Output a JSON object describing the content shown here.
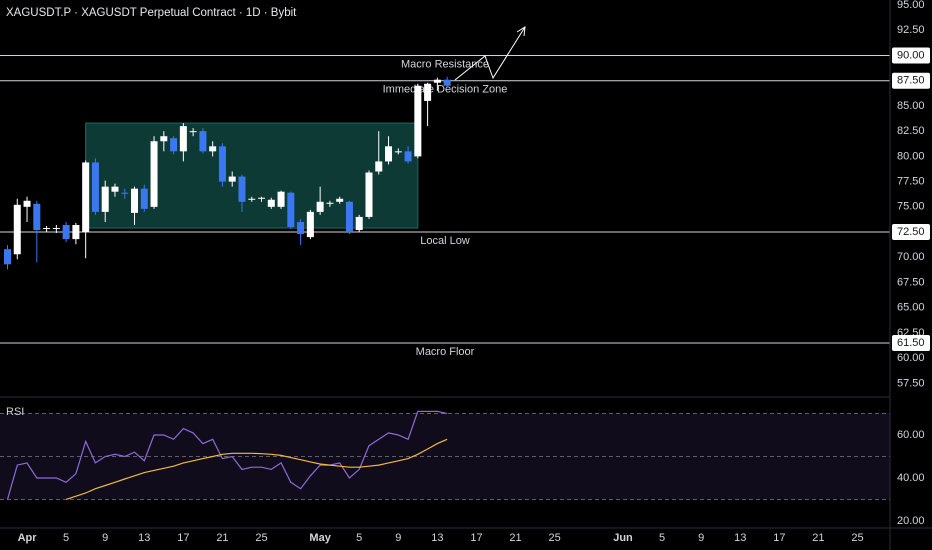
{
  "chart_data": {
    "type": "candlestick",
    "title": "XAGUSDT.P · XAGUSDT Perpetual Contract · 1D · Bybit",
    "categories": [
      null,
      null,
      "Apr",
      null,
      null,
      null,
      "5",
      null,
      null,
      null,
      "9",
      null,
      null,
      null,
      "13",
      null,
      null,
      null,
      "17",
      null,
      null,
      null,
      "21",
      null,
      null,
      null,
      "25",
      null,
      null,
      null,
      null,
      null,
      "May",
      null,
      null,
      null,
      "5",
      null,
      null,
      null,
      "9",
      null,
      null,
      null,
      "13",
      null,
      null,
      null,
      "17",
      null,
      null,
      null,
      "21",
      null,
      null,
      null,
      "25",
      null,
      null,
      null,
      null,
      null,
      null,
      "Jun",
      null,
      null,
      null,
      "5",
      null,
      null,
      null,
      "9",
      null,
      null,
      null,
      "13",
      null,
      null,
      null,
      "17",
      null,
      null,
      null,
      "21",
      null,
      null,
      null,
      "25",
      null,
      null
    ],
    "open": [
      70.8,
      70.3,
      75.0,
      75.3,
      72.8,
      72.9,
      73.2,
      71.8,
      72.5,
      79.4,
      74.5,
      76.5,
      76.4,
      74.4,
      76.8,
      75.0,
      81.5,
      81.8,
      80.5,
      82.4,
      82.5,
      80.5,
      81.0,
      77.5,
      78.0,
      75.7,
      75.8,
      75.0,
      75.0,
      76.4,
      73.5,
      72.0,
      74.5,
      75.3,
      75.5,
      75.5,
      72.7,
      74.0,
      78.5,
      79.5,
      80.5,
      80.5,
      80.0,
      85.5,
      87.3,
      87.6,
      null,
      null,
      null,
      null,
      null,
      null,
      null,
      null,
      null,
      null,
      null,
      null,
      null,
      null,
      null,
      null,
      null,
      null,
      null,
      null,
      null,
      null,
      null,
      null,
      null,
      null,
      null,
      null,
      null,
      null,
      null,
      null,
      null,
      null,
      null,
      null,
      null,
      null,
      null,
      null,
      null,
      null,
      null,
      null
    ],
    "high": [
      71.2,
      75.8,
      76.0,
      75.6,
      73.1,
      73.2,
      73.5,
      73.4,
      79.6,
      79.8,
      77.6,
      77.3,
      76.8,
      77.0,
      77.2,
      82.0,
      82.5,
      82.0,
      83.3,
      82.8,
      82.8,
      81.5,
      81.3,
      78.5,
      78.2,
      76.0,
      76.0,
      75.9,
      76.6,
      76.5,
      73.8,
      74.7,
      77.0,
      75.6,
      76.0,
      75.6,
      74.2,
      78.6,
      82.5,
      82.0,
      80.8,
      81.0,
      87.2,
      87.3,
      87.8,
      87.9,
      null,
      null,
      null,
      null,
      null,
      null,
      null,
      null,
      null,
      null,
      null,
      null,
      null,
      null,
      null,
      null,
      null,
      null,
      null,
      null,
      null,
      null,
      null,
      null,
      null,
      null,
      null,
      null,
      null,
      null,
      null,
      null,
      null,
      null,
      null,
      null,
      null,
      null,
      null,
      null,
      null,
      null,
      null,
      null
    ],
    "low": [
      68.8,
      69.8,
      73.5,
      69.5,
      72.5,
      72.4,
      71.5,
      71.3,
      69.9,
      74.2,
      73.5,
      76.0,
      75.8,
      73.2,
      74.5,
      74.8,
      80.5,
      80.2,
      79.5,
      82.0,
      80.3,
      80.0,
      77.0,
      77.0,
      74.5,
      75.5,
      75.5,
      74.8,
      74.8,
      72.8,
      71.2,
      71.8,
      74.2,
      75.0,
      75.3,
      72.3,
      72.5,
      73.8,
      78.2,
      79.2,
      80.2,
      79.3,
      79.8,
      83.0,
      86.5,
      86.8,
      null,
      null,
      null,
      null,
      null,
      null,
      null,
      null,
      null,
      null,
      null,
      null,
      null,
      null,
      null,
      null,
      null,
      null,
      null,
      null,
      null,
      null,
      null,
      null,
      null,
      null,
      null,
      null,
      null,
      null,
      null,
      null,
      null,
      null,
      null,
      null,
      null,
      null,
      null,
      null,
      null,
      null,
      null,
      null
    ],
    "close": [
      69.3,
      75.2,
      75.6,
      72.7,
      72.9,
      72.9,
      71.8,
      73.2,
      79.4,
      74.5,
      77.0,
      77.0,
      76.3,
      76.8,
      74.8,
      81.5,
      82.0,
      80.5,
      83.0,
      82.5,
      80.5,
      81.0,
      77.5,
      78.0,
      75.5,
      75.8,
      75.9,
      75.7,
      76.5,
      73.0,
      72.3,
      74.5,
      75.5,
      75.4,
      75.8,
      72.5,
      74.0,
      78.4,
      79.5,
      81.0,
      80.5,
      79.5,
      87.0,
      87.2,
      87.6,
      87.0,
      null,
      null,
      null,
      null,
      null,
      null,
      null,
      null,
      null,
      null,
      null,
      null,
      null,
      null,
      null,
      null,
      null,
      null,
      null,
      null,
      null,
      null,
      null,
      null,
      null,
      null,
      null,
      null,
      null,
      null,
      null,
      null,
      null,
      null,
      null,
      null,
      null,
      null,
      null,
      null,
      null,
      null,
      null,
      null
    ],
    "up_color": "#ffffff",
    "down_color": "#3b78f0",
    "ylim": [
      56.35,
      95.5
    ],
    "yticks": [
      {
        "value": 95,
        "label": "95.00"
      },
      {
        "value": 92.5,
        "label": "92.50"
      },
      {
        "value": 85,
        "label": "85.00"
      },
      {
        "value": 82.5,
        "label": "82.50"
      },
      {
        "value": 80,
        "label": "80.00"
      },
      {
        "value": 77.5,
        "label": "77.50"
      },
      {
        "value": 75,
        "label": "75.00"
      },
      {
        "value": 70,
        "label": "70.00"
      },
      {
        "value": 67.5,
        "label": "67.50"
      },
      {
        "value": 65,
        "label": "65.00"
      },
      {
        "value": 62.5,
        "label": "62.50"
      },
      {
        "value": 60,
        "label": "60.00"
      },
      {
        "value": 57.5,
        "label": "57.50"
      }
    ],
    "levels": [
      {
        "value": 90,
        "label": "90.00",
        "text": "Macro Resistance"
      },
      {
        "value": 87.5,
        "label": "87.50",
        "text": "Immediate Decision Zone"
      },
      {
        "value": 72.5,
        "label": "72.50",
        "text": "Local Low"
      },
      {
        "value": 61.5,
        "label": "61.50",
        "text": "Macro Floor"
      }
    ],
    "zone": {
      "from": 8,
      "to": 42,
      "top": 83.3,
      "bottom": 72.9,
      "color": "#0d3a35"
    },
    "rsi": {
      "label": "RSI",
      "color": "#8e6bd6",
      "ma_color": "#f2b93b",
      "ylim": [
        18.1,
        76.3
      ],
      "yticks": [
        {
          "value": 60,
          "label": "60.00"
        },
        {
          "value": 40,
          "label": "40.00"
        },
        {
          "value": 20,
          "label": "20.00"
        }
      ],
      "levels": [
        70,
        50,
        30
      ],
      "values": [
        30,
        46,
        47,
        40,
        40,
        40,
        38,
        42,
        57,
        47,
        50,
        51,
        50,
        52,
        48,
        60,
        60,
        58,
        63,
        61,
        56,
        58,
        49,
        50,
        44,
        45,
        45,
        44,
        47,
        38,
        35,
        41,
        46,
        46,
        47,
        40,
        44,
        55,
        58,
        61,
        60,
        58,
        71,
        71,
        71,
        70,
        null,
        null,
        null,
        null,
        null,
        null,
        null,
        null,
        null,
        null,
        null,
        null,
        null,
        null,
        null,
        null,
        null,
        null,
        null,
        null,
        null,
        null,
        null,
        null,
        null,
        null,
        null,
        null,
        null,
        null,
        null,
        null,
        null,
        null,
        null,
        null,
        null,
        null,
        null,
        null,
        null,
        null,
        null,
        null
      ],
      "ma": [
        null,
        null,
        null,
        null,
        null,
        null,
        30,
        31.5,
        33,
        35,
        36.5,
        38,
        39.5,
        41,
        42.5,
        43.5,
        44.5,
        45.5,
        47,
        48,
        49,
        50,
        51,
        51.5,
        51.5,
        51.5,
        51.3,
        51,
        50.5,
        49.5,
        48.5,
        47.5,
        46.5,
        46,
        45.5,
        45,
        45,
        45.5,
        46,
        47,
        48,
        49,
        51,
        53.5,
        56,
        58,
        null,
        null,
        null,
        null,
        null,
        null,
        null,
        null,
        null,
        null,
        null,
        null,
        null,
        null,
        null,
        null,
        null,
        null,
        null,
        null,
        null,
        null,
        null,
        null,
        null,
        null,
        null,
        null,
        null,
        null,
        null,
        null,
        null,
        null,
        null,
        null,
        null,
        null,
        null,
        null,
        null,
        null,
        null,
        null
      ]
    }
  }
}
